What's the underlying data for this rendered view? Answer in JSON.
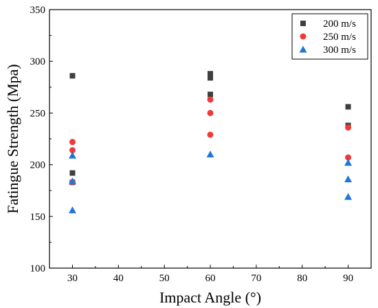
{
  "chart_data": {
    "type": "scatter",
    "xlabel": "Impact Angle (°)",
    "ylabel": "Fatingue Strength (Mpa)",
    "xlim": [
      25,
      95
    ],
    "ylim": [
      100,
      350
    ],
    "xticks": [
      30,
      40,
      50,
      60,
      70,
      80,
      90
    ],
    "yticks": [
      100,
      150,
      200,
      250,
      300,
      350
    ],
    "legend_position": "top-right",
    "grid": false,
    "series": [
      {
        "name": "200 m/s",
        "marker": "square",
        "color": "#3f3f3f",
        "x": [
          30,
          30,
          30,
          60,
          60,
          60,
          90,
          90
        ],
        "y": [
          286,
          192,
          183,
          288,
          284,
          268,
          256,
          238
        ]
      },
      {
        "name": "250 m/s",
        "marker": "circle",
        "color": "#f03a3a",
        "x": [
          30,
          30,
          30,
          60,
          60,
          60,
          90,
          90
        ],
        "y": [
          222,
          214,
          183,
          263,
          250,
          229,
          236,
          207
        ]
      },
      {
        "name": "300 m/s",
        "marker": "triangle",
        "color": "#1f78d9",
        "x": [
          30,
          30,
          30,
          60,
          90,
          90,
          90
        ],
        "y": [
          209,
          184,
          156,
          210,
          202,
          186,
          169
        ]
      }
    ]
  }
}
